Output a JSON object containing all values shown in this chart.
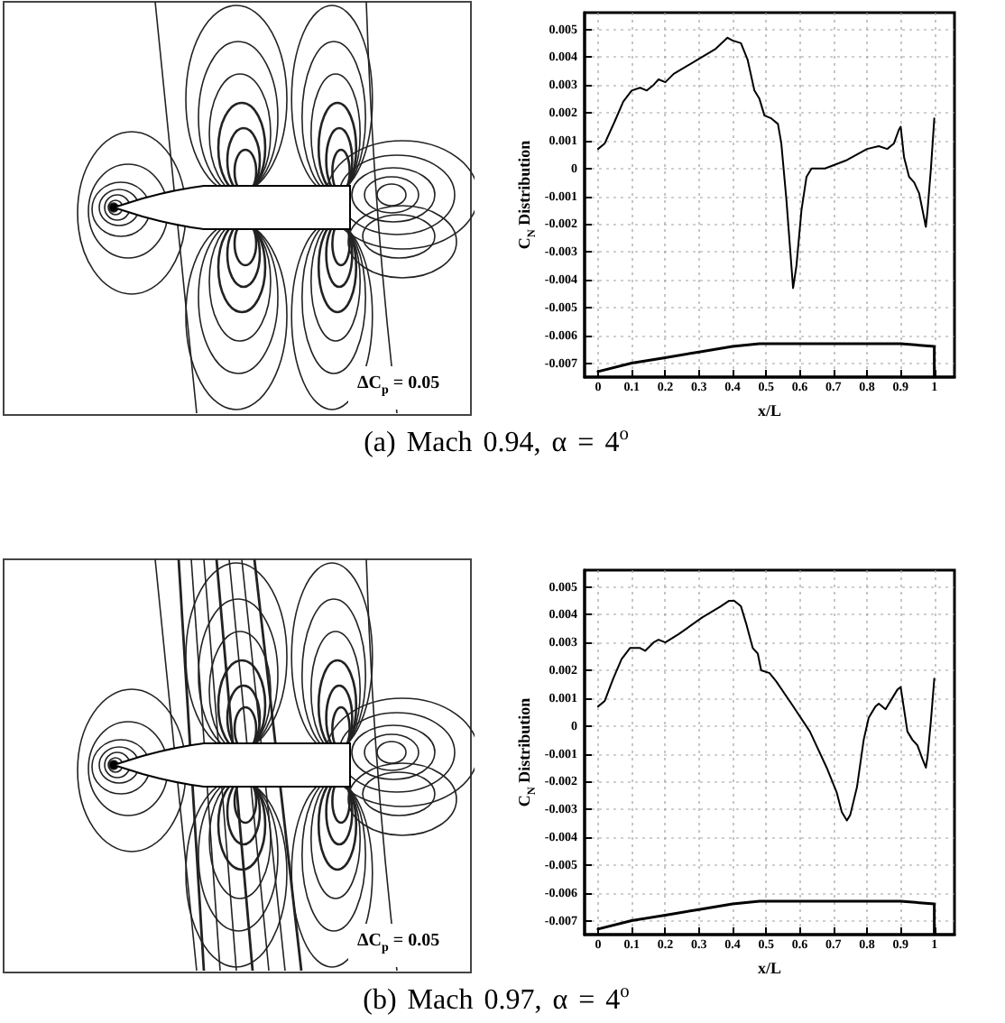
{
  "chart_data": [
    {
      "type": "other",
      "annotations": [
        "ΔC$_{p}$ = 0.05",
        "(a) Mach 0.94, α = 4$^{o}$"
      ]
    },
    {
      "type": "line",
      "xlabel": "x/L",
      "ylabel": "C$_{N}$ Distribution",
      "xlim": [
        -0.04,
        1.06
      ],
      "xticks": [
        0,
        0.1,
        0.2,
        0.3,
        0.4,
        0.5,
        0.6,
        0.7,
        0.8,
        0.9,
        1
      ],
      "ylim": [
        -0.0075,
        0.0056
      ],
      "yticks": [
        -0.007,
        -0.006,
        -0.005,
        -0.004,
        -0.003,
        -0.002,
        -0.001,
        0,
        0.001,
        0.002,
        0.003,
        0.004,
        0.005
      ],
      "grid": true,
      "marker": "none",
      "line_style": "solid",
      "series": [
        {
          "color": "#000000",
          "x": [
            0,
            0.02,
            0.05,
            0.075,
            0.1,
            0.125,
            0.145,
            0.165,
            0.18,
            0.2,
            0.225,
            0.295,
            0.35,
            0.385,
            0.4,
            0.425,
            0.445,
            0.465,
            0.48,
            0.495,
            0.515,
            0.535,
            0.545,
            0.56,
            0.575,
            0.58,
            0.59,
            0.605,
            0.62,
            0.635,
            0.675,
            0.74,
            0.8,
            0.835,
            0.86,
            0.88,
            0.895,
            0.9,
            0.91,
            0.925,
            0.94,
            0.955,
            0.965,
            0.975,
            0.98,
            0.99,
            1
          ],
          "values": [
            0.0007,
            0.0009,
            0.0017,
            0.0024,
            0.0028,
            0.0029,
            0.0028,
            0.003,
            0.0032,
            0.0031,
            0.0034,
            0.0039,
            0.0043,
            0.0047,
            0.0046,
            0.0045,
            0.0039,
            0.0028,
            0.0025,
            0.0019,
            0.0018,
            0.0016,
            0.0009,
            -0.0011,
            -0.0035,
            -0.0043,
            -0.0035,
            -0.0015,
            -0.0003,
            0,
            0,
            0.0003,
            0.0007,
            0.0008,
            0.0007,
            0.0009,
            0.0014,
            0.0015,
            0.0004,
            -0.0003,
            -0.0005,
            -0.0009,
            -0.0015,
            -0.0021,
            -0.0015,
            0,
            0.0018
          ]
        },
        {
          "color": "#000000",
          "x": [
            0,
            0.1,
            0.2,
            0.3,
            0.4,
            0.48,
            0.9,
            1,
            1
          ],
          "values": [
            -0.0073,
            -0.007,
            -0.0068,
            -0.0066,
            -0.0064,
            -0.0063,
            -0.0063,
            -0.0064,
            -0.0075
          ]
        }
      ]
    },
    {
      "type": "other",
      "annotations": [
        "ΔC$_{p}$ = 0.05",
        "(b) Mach 0.97, α = 4$^{o}$"
      ]
    },
    {
      "type": "line",
      "xlabel": "x/L",
      "ylabel": "C$_{N}$ Distribution",
      "xlim": [
        -0.04,
        1.06
      ],
      "xticks": [
        0,
        0.1,
        0.2,
        0.3,
        0.4,
        0.5,
        0.6,
        0.7,
        0.8,
        0.9,
        1
      ],
      "ylim": [
        -0.0075,
        0.0056
      ],
      "yticks": [
        -0.007,
        -0.006,
        -0.005,
        -0.004,
        -0.003,
        -0.002,
        -0.001,
        0,
        0.001,
        0.002,
        0.003,
        0.004,
        0.005
      ],
      "grid": true,
      "marker": "none",
      "line_style": "solid",
      "series": [
        {
          "color": "#000000",
          "x": [
            0,
            0.02,
            0.045,
            0.07,
            0.095,
            0.125,
            0.14,
            0.165,
            0.18,
            0.2,
            0.24,
            0.31,
            0.365,
            0.39,
            0.405,
            0.425,
            0.44,
            0.46,
            0.475,
            0.485,
            0.51,
            0.53,
            0.575,
            0.63,
            0.68,
            0.71,
            0.725,
            0.74,
            0.75,
            0.77,
            0.79,
            0.805,
            0.825,
            0.835,
            0.855,
            0.875,
            0.89,
            0.9,
            0.91,
            0.92,
            0.935,
            0.95,
            0.965,
            0.975,
            0.98,
            0.99,
            1
          ],
          "values": [
            0.0007,
            0.0009,
            0.0017,
            0.0024,
            0.0028,
            0.0028,
            0.0027,
            0.003,
            0.0031,
            0.003,
            0.0033,
            0.0039,
            0.0043,
            0.0045,
            0.0045,
            0.0043,
            0.0037,
            0.0028,
            0.0026,
            0.002,
            0.0019,
            0.0016,
            0.0008,
            -0.0002,
            -0.0015,
            -0.0024,
            -0.0031,
            -0.0034,
            -0.0032,
            -0.0022,
            -0.0005,
            0.0003,
            0.0007,
            0.0008,
            0.0006,
            0.001,
            0.0013,
            0.0014,
            0.0006,
            -0.0002,
            -0.0005,
            -0.0007,
            -0.0012,
            -0.0015,
            -0.0011,
            0.0002,
            0.0017
          ]
        },
        {
          "color": "#000000",
          "x": [
            0,
            0.1,
            0.2,
            0.3,
            0.4,
            0.48,
            0.9,
            1,
            1
          ],
          "values": [
            -0.0073,
            -0.007,
            -0.0068,
            -0.0066,
            -0.0064,
            -0.0063,
            -0.0063,
            -0.0064,
            -0.0075
          ]
        }
      ]
    }
  ]
}
